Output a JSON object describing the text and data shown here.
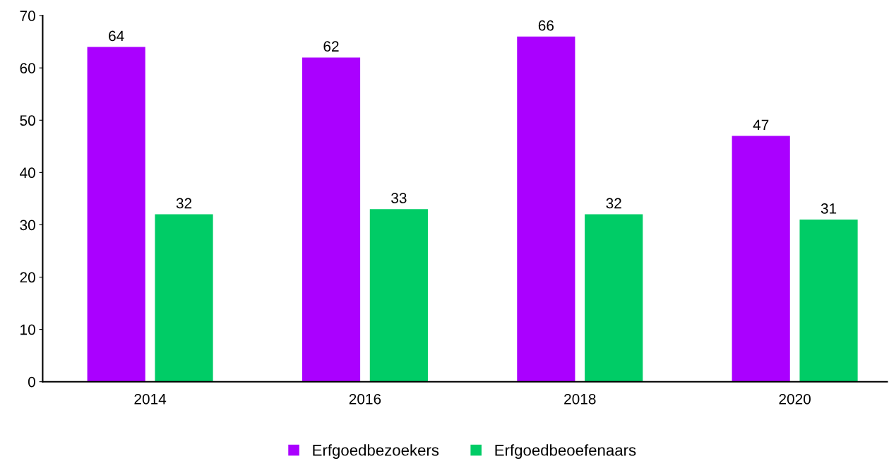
{
  "chart_data": {
    "type": "bar",
    "categories": [
      "2014",
      "2016",
      "2018",
      "2020"
    ],
    "series": [
      {
        "name": "Erfgoedbezoekers",
        "color": "#aa00ff",
        "values": [
          64,
          62,
          66,
          47
        ]
      },
      {
        "name": "Erfgoedbeoefenaars",
        "color": "#00cc66",
        "values": [
          32,
          33,
          32,
          31
        ]
      }
    ],
    "ylim": [
      0,
      70
    ],
    "yticks": [
      0,
      10,
      20,
      30,
      40,
      50,
      60,
      70
    ],
    "grid": false,
    "legend": "bottom",
    "data_labels": true
  }
}
